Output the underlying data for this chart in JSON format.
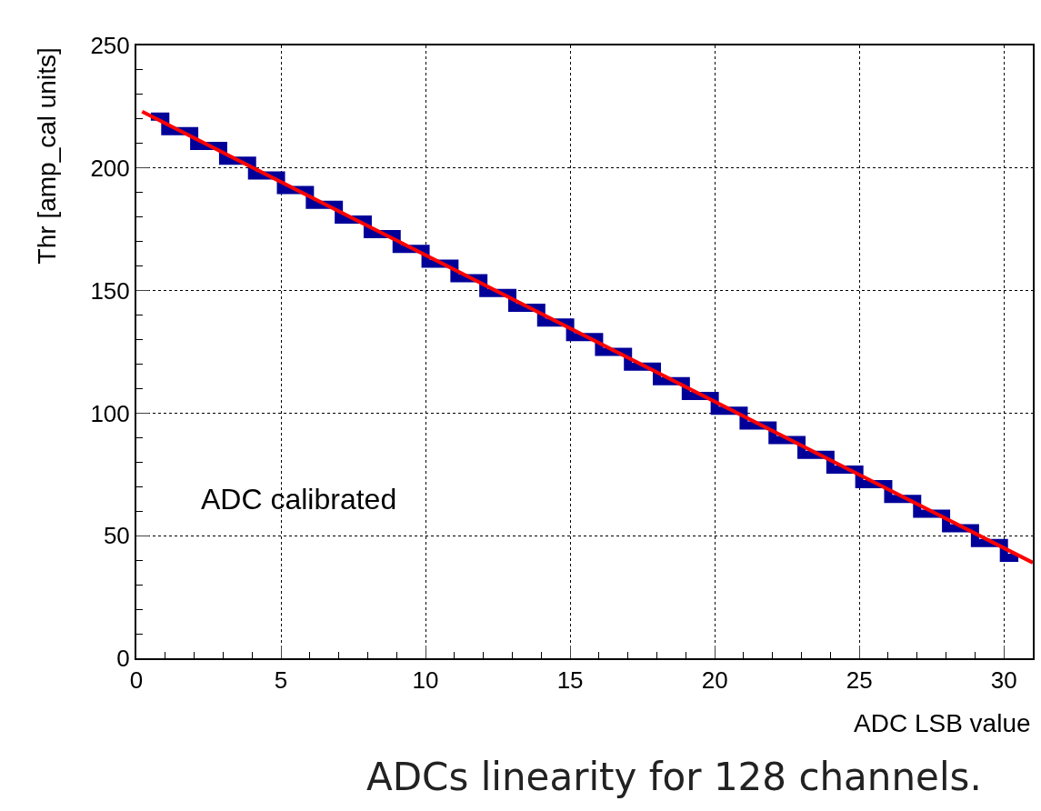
{
  "chart_data": {
    "type": "step",
    "title": "ADCs linearity for 128 channels.",
    "xlabel": "ADC LSB value",
    "ylabel": "Thr [amp_cal units]",
    "annotations": [
      "ADC calibrated"
    ],
    "series": [
      {
        "color": "#000099",
        "x": [
          0.5,
          1.5,
          2.5,
          3.5,
          4.5,
          5.5,
          6.5,
          7.5,
          8.5,
          9.5,
          10.5,
          11.5,
          12.5,
          13.5,
          14.5,
          15.5,
          16.5,
          17.5,
          18.5,
          19.5,
          20.5,
          21.5,
          22.5,
          23.5,
          24.5,
          25.5,
          26.5,
          27.5,
          28.5,
          29.5,
          30.5
        ],
        "values": [
          221,
          215,
          209,
          203,
          197,
          191,
          185,
          179,
          173,
          167,
          161,
          155,
          149,
          143,
          137,
          131,
          125,
          119,
          113,
          107,
          101,
          95,
          89,
          83,
          77,
          71,
          65,
          59,
          53,
          47,
          41
        ]
      },
      {
        "type": "line",
        "color": "#ff0000",
        "x": [
          0.2,
          31
        ],
        "values": [
          223,
          39
        ]
      }
    ],
    "xlim": [
      0,
      31
    ],
    "xticks": [
      0,
      5,
      10,
      15,
      20,
      25,
      30
    ],
    "ylim": [
      0,
      250
    ],
    "yticks": [
      0,
      50,
      100,
      150,
      200,
      250
    ],
    "grid": true
  }
}
